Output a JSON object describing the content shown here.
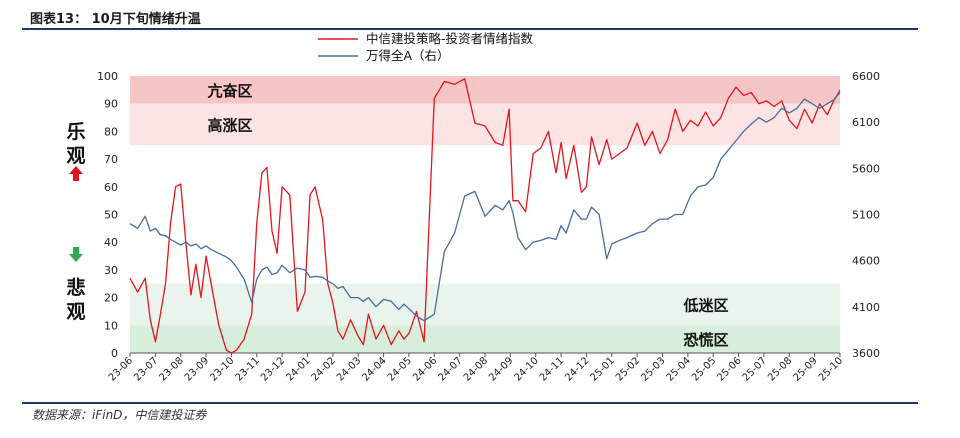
{
  "header": {
    "title": "图表13：  10月下旬情绪升温"
  },
  "source": "数据来源：iFinD，中信建投证券",
  "colors": {
    "line_sentiment": "#e8141b",
    "line_index": "#4a6b9e",
    "zone_top": "#f9d3d3",
    "zone_bottom": "#dff0e3"
  },
  "chart_data": {
    "type": "line",
    "title": "",
    "legend": {
      "position": "top-center",
      "entries": [
        "中信建投策略-投资者情绪指数",
        "万得全A（右）"
      ]
    },
    "categories": [
      "23-06",
      "23-07",
      "23-08",
      "23-09",
      "23-10",
      "23-11",
      "23-12",
      "24-01",
      "24-02",
      "24-03",
      "24-04",
      "24-05",
      "24-06",
      "24-07",
      "24-08",
      "24-09",
      "24-10",
      "24-11",
      "24-12",
      "25-01",
      "25-02",
      "25-03",
      "25-04",
      "25-05",
      "25-06",
      "25-07",
      "25-08",
      "25-09",
      "25-10"
    ],
    "ylim_left": [
      0,
      100
    ],
    "yticks_left": [
      0,
      10,
      20,
      30,
      40,
      50,
      60,
      70,
      80,
      90,
      100
    ],
    "ylim_right": [
      3600,
      6600
    ],
    "yticks_right": [
      3600,
      4100,
      4600,
      5100,
      5600,
      6100,
      6600
    ],
    "zones": [
      {
        "label": "亢奋区",
        "range": [
          90,
          100
        ],
        "tone": "strong-red"
      },
      {
        "label": "高涨区",
        "range": [
          75,
          90
        ],
        "tone": "light-red"
      },
      {
        "label": "低迷区",
        "range": [
          10,
          25
        ],
        "tone": "light-green"
      },
      {
        "label": "恐慌区",
        "range": [
          0,
          10
        ],
        "tone": "strong-green"
      }
    ],
    "side_labels": {
      "up_top": "乐",
      "up_bottom": "观",
      "down_top": "悲",
      "down_bottom": "观"
    },
    "series": [
      {
        "name": "中信建投策略-投资者情绪指数",
        "axis": "left",
        "x": [
          0,
          0.3,
          0.6,
          0.8,
          1.0,
          1.2,
          1.4,
          1.6,
          1.8,
          2.0,
          2.2,
          2.4,
          2.6,
          2.8,
          3.0,
          3.2,
          3.5,
          3.8,
          4.0,
          4.2,
          4.5,
          4.8,
          5.0,
          5.2,
          5.4,
          5.6,
          5.8,
          6.0,
          6.3,
          6.6,
          6.9,
          7.1,
          7.3,
          7.6,
          7.8,
          8.0,
          8.2,
          8.4,
          8.7,
          9.0,
          9.2,
          9.4,
          9.7,
          10.0,
          10.3,
          10.6,
          10.8,
          11.0,
          11.3,
          11.6,
          12.0,
          12.4,
          12.8,
          13.2,
          13.6,
          14.0,
          14.4,
          14.7,
          14.95,
          15.1,
          15.3,
          15.6,
          15.9,
          16.2,
          16.5,
          16.8,
          17.0,
          17.2,
          17.5,
          17.8,
          18.0,
          18.2,
          18.5,
          18.8,
          19.0,
          19.3,
          19.6,
          20.0,
          20.3,
          20.6,
          20.9,
          21.2,
          21.5,
          21.8,
          22.1,
          22.4,
          22.7,
          23.0,
          23.3,
          23.6,
          23.9,
          24.2,
          24.5,
          24.8,
          25.1,
          25.4,
          25.7,
          26.0,
          26.3,
          26.6,
          26.9,
          27.2,
          27.5,
          27.8,
          28.0
        ],
        "values": [
          27,
          22,
          27,
          12,
          4,
          14,
          25,
          47,
          60,
          61,
          40,
          21,
          32,
          20,
          35,
          25,
          10,
          1,
          0,
          1,
          5,
          14,
          47,
          65,
          67,
          44,
          36,
          60,
          57,
          15,
          22,
          57,
          60,
          48,
          25,
          18,
          8,
          5,
          12,
          6,
          3,
          14,
          5,
          10,
          3,
          8,
          5,
          7,
          15,
          4,
          92,
          98,
          97,
          99,
          83,
          82,
          76,
          75,
          88,
          55,
          55,
          51,
          72,
          74,
          80,
          65,
          76,
          63,
          75,
          58,
          60,
          78,
          68,
          77,
          70,
          72,
          74,
          83,
          75,
          80,
          72,
          77,
          88,
          80,
          84,
          82,
          87,
          82,
          85,
          92,
          96,
          93,
          94,
          90,
          91,
          89,
          91,
          84,
          81,
          88,
          83,
          90,
          86,
          92,
          94
        ],
        "color": "#e8141b"
      },
      {
        "name": "万得全A（右）",
        "axis": "right",
        "x": [
          0,
          0.3,
          0.6,
          0.8,
          1.0,
          1.2,
          1.4,
          1.6,
          1.8,
          2.0,
          2.2,
          2.4,
          2.6,
          2.8,
          3.0,
          3.2,
          3.5,
          3.8,
          4.0,
          4.2,
          4.5,
          4.8,
          5.0,
          5.2,
          5.4,
          5.6,
          5.8,
          6.0,
          6.3,
          6.6,
          6.9,
          7.1,
          7.3,
          7.6,
          7.8,
          8.0,
          8.2,
          8.4,
          8.7,
          9.0,
          9.2,
          9.4,
          9.7,
          10.0,
          10.3,
          10.6,
          10.8,
          11.0,
          11.3,
          11.6,
          12.0,
          12.4,
          12.8,
          13.2,
          13.6,
          14.0,
          14.4,
          14.7,
          14.95,
          15.1,
          15.3,
          15.6,
          15.9,
          16.2,
          16.5,
          16.8,
          17.0,
          17.2,
          17.5,
          17.8,
          18.0,
          18.2,
          18.5,
          18.8,
          19.0,
          19.3,
          19.6,
          20.0,
          20.3,
          20.6,
          20.9,
          21.2,
          21.5,
          21.8,
          22.1,
          22.4,
          22.7,
          23.0,
          23.3,
          23.6,
          23.9,
          24.2,
          24.5,
          24.8,
          25.1,
          25.4,
          25.7,
          26.0,
          26.3,
          26.6,
          26.9,
          27.2,
          27.5,
          27.8,
          28.0
        ],
        "values": [
          5000,
          4950,
          5080,
          4920,
          4950,
          4880,
          4870,
          4830,
          4800,
          4770,
          4800,
          4760,
          4780,
          4730,
          4760,
          4720,
          4680,
          4640,
          4600,
          4530,
          4400,
          4150,
          4400,
          4500,
          4530,
          4450,
          4470,
          4550,
          4470,
          4520,
          4500,
          4420,
          4430,
          4420,
          4380,
          4350,
          4300,
          4320,
          4200,
          4200,
          4160,
          4200,
          4100,
          4180,
          4160,
          4070,
          4130,
          4080,
          4000,
          3950,
          4020,
          4700,
          4900,
          5300,
          5350,
          5080,
          5200,
          5150,
          5250,
          5120,
          4850,
          4720,
          4800,
          4820,
          4850,
          4830,
          4980,
          4900,
          5150,
          5050,
          5050,
          5180,
          5100,
          4620,
          4780,
          4820,
          4850,
          4900,
          4920,
          5000,
          5050,
          5050,
          5100,
          5100,
          5300,
          5400,
          5420,
          5500,
          5700,
          5800,
          5900,
          6000,
          6080,
          6150,
          6100,
          6150,
          6250,
          6200,
          6250,
          6350,
          6300,
          6250,
          6300,
          6350,
          6450
        ],
        "color": "#4a6b9e"
      }
    ]
  }
}
